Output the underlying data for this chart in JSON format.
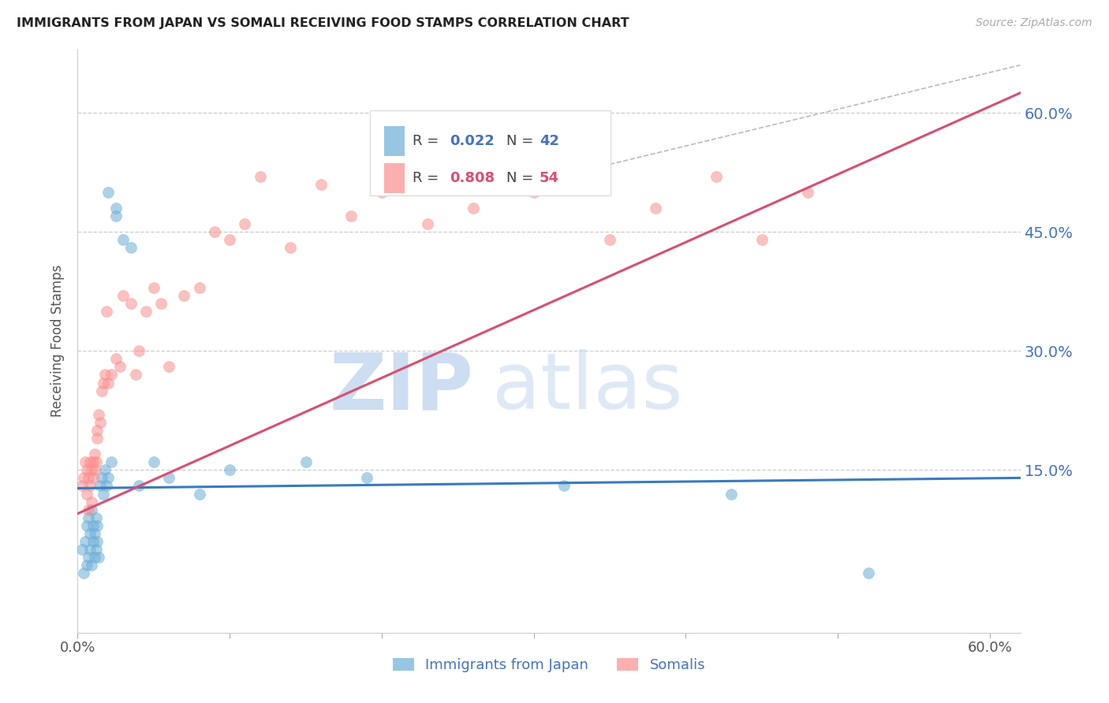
{
  "title": "IMMIGRANTS FROM JAPAN VS SOMALI RECEIVING FOOD STAMPS CORRELATION CHART",
  "source": "Source: ZipAtlas.com",
  "ylabel": "Receiving Food Stamps",
  "xlim": [
    0.0,
    0.62
  ],
  "ylim": [
    -0.055,
    0.68
  ],
  "ytick_vals": [
    0.15,
    0.3,
    0.45,
    0.6
  ],
  "ytick_labels": [
    "15.0%",
    "30.0%",
    "45.0%",
    "60.0%"
  ],
  "xtick_vals": [
    0.0,
    0.1,
    0.2,
    0.3,
    0.4,
    0.5,
    0.6
  ],
  "legend_japan_R": "0.022",
  "legend_japan_N": "42",
  "legend_somali_R": "0.808",
  "legend_somali_N": "54",
  "japan_color": "#6baed6",
  "somali_color": "#fc8d8d",
  "japan_line_color": "#3a7abf",
  "somali_line_color": "#d94f70",
  "background_color": "#ffffff",
  "japan_x": [
    0.003,
    0.004,
    0.005,
    0.006,
    0.006,
    0.007,
    0.007,
    0.008,
    0.008,
    0.009,
    0.009,
    0.01,
    0.01,
    0.011,
    0.011,
    0.012,
    0.012,
    0.013,
    0.013,
    0.014,
    0.015,
    0.016,
    0.017,
    0.018,
    0.019,
    0.02,
    0.022,
    0.025,
    0.03,
    0.035,
    0.04,
    0.05,
    0.06,
    0.08,
    0.1,
    0.15,
    0.19,
    0.32,
    0.43,
    0.52,
    0.02,
    0.025
  ],
  "japan_y": [
    0.05,
    0.02,
    0.06,
    0.03,
    0.08,
    0.04,
    0.09,
    0.05,
    0.07,
    0.03,
    0.1,
    0.06,
    0.08,
    0.04,
    0.07,
    0.05,
    0.09,
    0.06,
    0.08,
    0.04,
    0.13,
    0.14,
    0.12,
    0.15,
    0.13,
    0.14,
    0.16,
    0.47,
    0.44,
    0.43,
    0.13,
    0.16,
    0.14,
    0.12,
    0.15,
    0.16,
    0.14,
    0.13,
    0.12,
    0.02,
    0.5,
    0.48
  ],
  "somali_x": [
    0.003,
    0.004,
    0.005,
    0.006,
    0.006,
    0.007,
    0.007,
    0.008,
    0.008,
    0.009,
    0.009,
    0.01,
    0.01,
    0.011,
    0.011,
    0.012,
    0.013,
    0.013,
    0.014,
    0.015,
    0.016,
    0.017,
    0.018,
    0.019,
    0.02,
    0.022,
    0.025,
    0.028,
    0.03,
    0.035,
    0.038,
    0.04,
    0.045,
    0.05,
    0.055,
    0.06,
    0.07,
    0.08,
    0.09,
    0.1,
    0.11,
    0.12,
    0.14,
    0.16,
    0.18,
    0.2,
    0.23,
    0.26,
    0.3,
    0.35,
    0.38,
    0.42,
    0.45,
    0.48
  ],
  "somali_y": [
    0.13,
    0.14,
    0.16,
    0.12,
    0.15,
    0.1,
    0.14,
    0.13,
    0.16,
    0.11,
    0.15,
    0.14,
    0.16,
    0.15,
    0.17,
    0.16,
    0.19,
    0.2,
    0.22,
    0.21,
    0.25,
    0.26,
    0.27,
    0.35,
    0.26,
    0.27,
    0.29,
    0.28,
    0.37,
    0.36,
    0.27,
    0.3,
    0.35,
    0.38,
    0.36,
    0.28,
    0.37,
    0.38,
    0.45,
    0.44,
    0.46,
    0.52,
    0.43,
    0.51,
    0.47,
    0.5,
    0.46,
    0.48,
    0.5,
    0.44,
    0.48,
    0.52,
    0.44,
    0.5
  ],
  "japan_line_x": [
    0.0,
    0.62
  ],
  "japan_line_y": [
    0.127,
    0.14
  ],
  "somali_line_x": [
    0.0,
    0.62
  ],
  "somali_line_y": [
    0.095,
    0.625
  ],
  "diag_line_x": [
    0.35,
    0.62
  ],
  "diag_line_y": [
    0.535,
    0.66
  ]
}
